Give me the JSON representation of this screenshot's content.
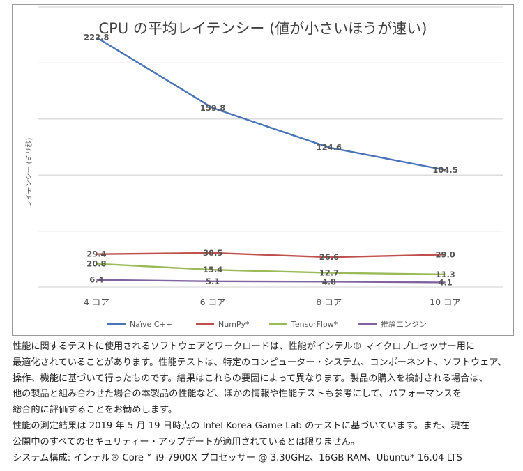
{
  "chart_data": {
    "type": "line",
    "title": "CPU の平均レイテンシー (値が小さいほうが速い)",
    "xlabel": "",
    "ylabel": "レイテンシー (ミリ秒)",
    "categories": [
      "4 コア",
      "6 コア",
      "8 コア",
      "10 コア"
    ],
    "ylim": [
      0,
      250
    ],
    "grid": true,
    "legend_position": "bottom",
    "series": [
      {
        "name": "Naïve C++",
        "color": "#4a74b8",
        "values": [
          222.8,
          159.8,
          124.6,
          104.5
        ],
        "labels": [
          "222.8",
          "159.8",
          "124.6",
          "104.5"
        ]
      },
      {
        "name": "NumPy*",
        "color": "#c0504d",
        "values": [
          29.4,
          30.5,
          26.6,
          29.0
        ],
        "labels": [
          "29.4",
          "30.5",
          "26.6",
          "29.0"
        ]
      },
      {
        "name": "TensorFlow*",
        "color": "#9bbb59",
        "values": [
          20.8,
          15.4,
          12.7,
          11.3
        ],
        "labels": [
          "20.8",
          "15.4",
          "12.7",
          "11.3"
        ]
      },
      {
        "name": "推論エンジン",
        "color": "#8064a2",
        "values": [
          6.4,
          5.1,
          4.8,
          4.1
        ],
        "labels": [
          "6.4",
          "5.1",
          "4.8",
          "4.1"
        ]
      }
    ]
  },
  "footnotes": {
    "line1": "性能に関するテストに使用されるソフトウェアとワークロードは、性能がインテル® マイクロプロセッサー用に",
    "line2": "最適化されていることがあります。性能テストは、特定のコンピューター・システム、コンポーネント、ソフトウェア、",
    "line3": "操作、機能に基づいて行ったものです。結果はこれらの要因によって異なります。製品の購入を検討される場合は、",
    "line4": "他の製品と組み合わせた場合の本製品の性能など、ほかの情報や性能テストも参考にして、パフォーマンスを",
    "line5": "総合的に評価することをお勧めします。",
    "line6": "性能の測定結果は 2019 年 5 月 19 日時点の Intel Korea Game Lab のテストに基づいています。また、現在",
    "line7": "公開中のすべてのセキュリティー・アップデートが適用されているとは限りません。",
    "line8": "システム構成: インテル® Core™ i9-7900X プロセッサー @ 3.30GHz、16GB RAM、Ubuntu* 16.04 LTS"
  }
}
